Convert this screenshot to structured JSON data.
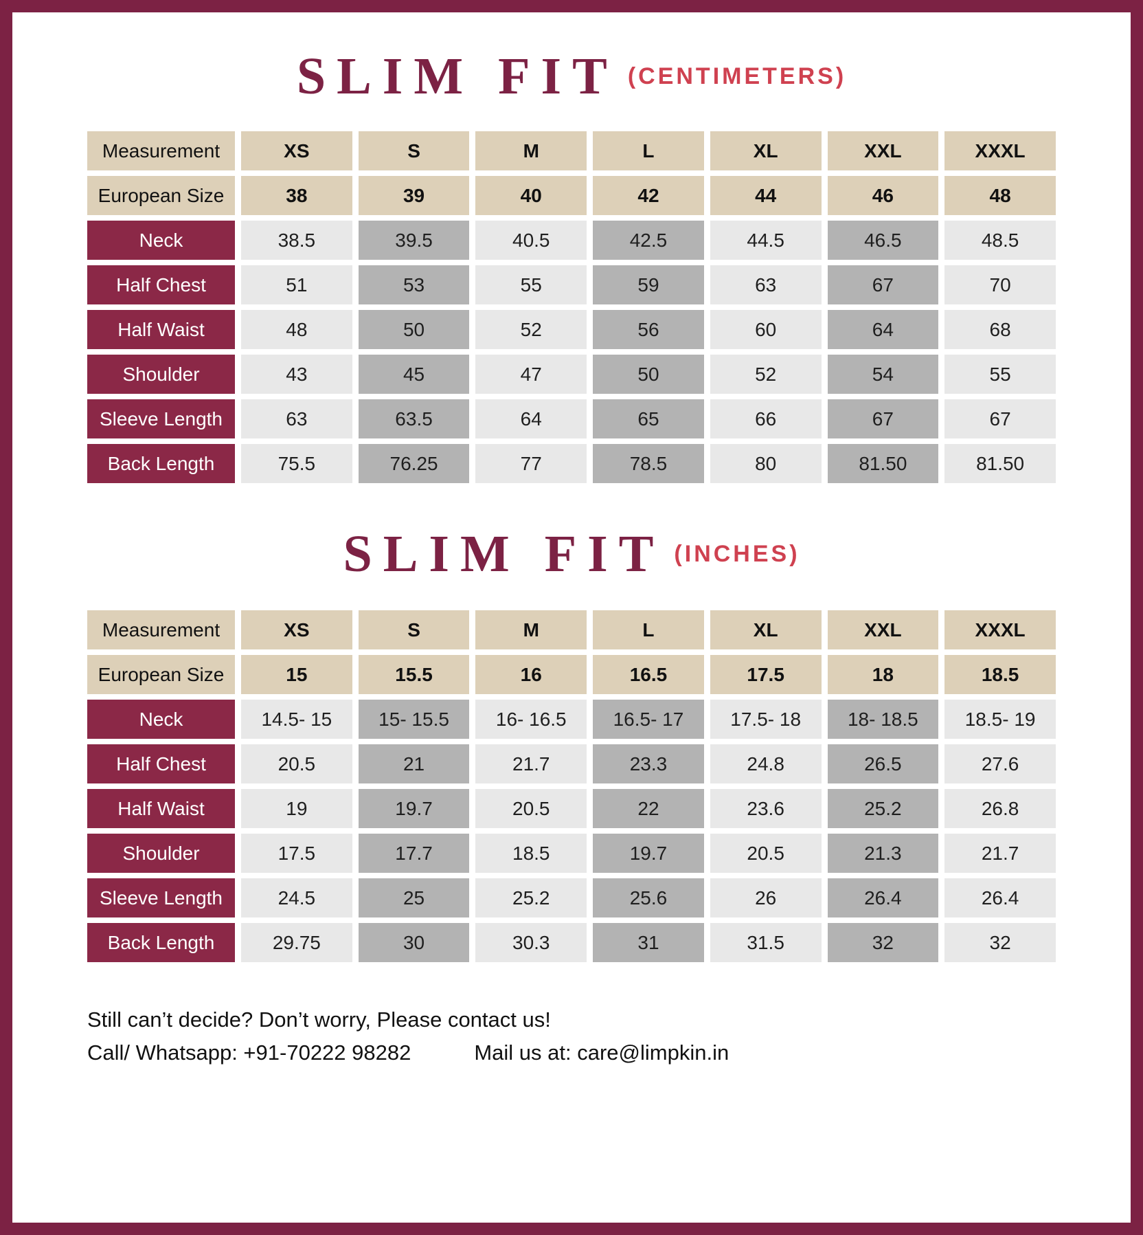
{
  "colors": {
    "border_maroon": "#7c2244",
    "row_label_maroon": "#8b2847",
    "unit_red": "#cf4150",
    "header_tan": "#ddd0b8",
    "cell_light": "#e8e8e8",
    "cell_dark": "#b3b3b3"
  },
  "tables": [
    {
      "title": "SLIM FIT",
      "unit_label": "(CENTIMETERS)",
      "header": {
        "label": "Measurement",
        "sizes": [
          "XS",
          "S",
          "M",
          "L",
          "XL",
          "XXL",
          "XXXL"
        ]
      },
      "euro": {
        "label": "European Size",
        "values": [
          "38",
          "39",
          "40",
          "42",
          "44",
          "46",
          "48"
        ]
      },
      "rows": [
        {
          "label": "Neck",
          "values": [
            "38.5",
            "39.5",
            "40.5",
            "42.5",
            "44.5",
            "46.5",
            "48.5"
          ]
        },
        {
          "label": "Half Chest",
          "values": [
            "51",
            "53",
            "55",
            "59",
            "63",
            "67",
            "70"
          ]
        },
        {
          "label": "Half Waist",
          "values": [
            "48",
            "50",
            "52",
            "56",
            "60",
            "64",
            "68"
          ]
        },
        {
          "label": "Shoulder",
          "values": [
            "43",
            "45",
            "47",
            "50",
            "52",
            "54",
            "55"
          ]
        },
        {
          "label": "Sleeve Length",
          "values": [
            "63",
            "63.5",
            "64",
            "65",
            "66",
            "67",
            "67"
          ]
        },
        {
          "label": "Back Length",
          "values": [
            "75.5",
            "76.25",
            "77",
            "78.5",
            "80",
            "81.50",
            "81.50"
          ]
        }
      ]
    },
    {
      "title": "SLIM FIT",
      "unit_label": "(INCHES)",
      "header": {
        "label": "Measurement",
        "sizes": [
          "XS",
          "S",
          "M",
          "L",
          "XL",
          "XXL",
          "XXXL"
        ]
      },
      "euro": {
        "label": "European Size",
        "values": [
          "15",
          "15.5",
          "16",
          "16.5",
          "17.5",
          "18",
          "18.5"
        ]
      },
      "rows": [
        {
          "label": "Neck",
          "values": [
            "14.5- 15",
            "15- 15.5",
            "16- 16.5",
            "16.5- 17",
            "17.5- 18",
            "18- 18.5",
            "18.5- 19"
          ]
        },
        {
          "label": "Half Chest",
          "values": [
            "20.5",
            "21",
            "21.7",
            "23.3",
            "24.8",
            "26.5",
            "27.6"
          ]
        },
        {
          "label": "Half Waist",
          "values": [
            "19",
            "19.7",
            "20.5",
            "22",
            "23.6",
            "25.2",
            "26.8"
          ]
        },
        {
          "label": "Shoulder",
          "values": [
            "17.5",
            "17.7",
            "18.5",
            "19.7",
            "20.5",
            "21.3",
            "21.7"
          ]
        },
        {
          "label": "Sleeve Length",
          "values": [
            "24.5",
            "25",
            "25.2",
            "25.6",
            "26",
            "26.4",
            "26.4"
          ]
        },
        {
          "label": "Back Length",
          "values": [
            "29.75",
            "30",
            "30.3",
            "31",
            "31.5",
            "32",
            "32"
          ]
        }
      ]
    }
  ],
  "footer": {
    "line1": "Still can’t decide? Don’t worry, Please contact us!",
    "call": "Call/ Whatsapp: +91-70222 98282",
    "mail": "Mail us at: care@limpkin.in"
  }
}
